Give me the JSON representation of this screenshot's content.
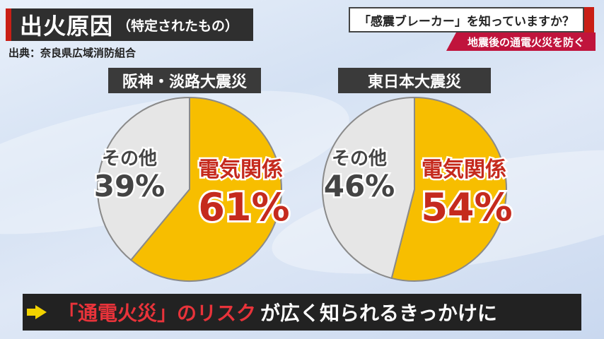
{
  "header": {
    "title": "出火原因",
    "subtitle": "（特定されたもの）",
    "source": "出典：奈良県広域消防組合"
  },
  "topic": {
    "question": "「感震ブレーカー」を知っていますか？",
    "subtitle": "地震後の通電火災を防ぐ"
  },
  "chart_data": [
    {
      "type": "pie",
      "title": "阪神・淡路大震災",
      "slices": [
        {
          "label": "電気関係",
          "value": 61,
          "display": "61%",
          "color": "#f7be00"
        },
        {
          "label": "その他",
          "value": 39,
          "display": "39%",
          "color": "#e6e6e6"
        }
      ]
    },
    {
      "type": "pie",
      "title": "東日本大震災",
      "slices": [
        {
          "label": "電気関係",
          "value": 54,
          "display": "54%",
          "color": "#f7be00"
        },
        {
          "label": "その他",
          "value": 46,
          "display": "46%",
          "color": "#e6e6e6"
        }
      ]
    }
  ],
  "banner": {
    "highlight": "「通電火災」のリスク",
    "rest": "が広く知られるきっかけに"
  },
  "colors": {
    "electric_text": "#c52a1d",
    "other_text": "#444444"
  }
}
